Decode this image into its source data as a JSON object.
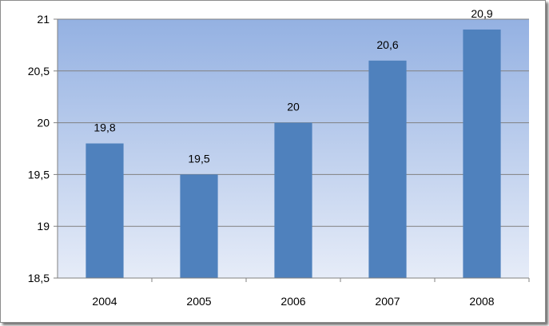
{
  "chart_data": {
    "type": "bar",
    "categories": [
      "2004",
      "2005",
      "2006",
      "2007",
      "2008"
    ],
    "values": [
      19.8,
      19.5,
      20,
      20.6,
      20.9
    ],
    "data_labels": [
      "19,8",
      "19,5",
      "20",
      "20,6",
      "20,9"
    ],
    "title": "",
    "xlabel": "",
    "ylabel": "",
    "ylim": [
      18.5,
      21
    ],
    "y_ticks": [
      18.5,
      19,
      19.5,
      20,
      20.5,
      21
    ],
    "y_tick_labels": [
      "18,5",
      "19",
      "19,5",
      "20",
      "20,5",
      "21"
    ],
    "grid": true,
    "legend": "none",
    "colors": {
      "bar": "#4f81bd",
      "plot_bg_top": "#94b1e2",
      "plot_bg_bottom": "#e6ecf8",
      "gridline": "#808080"
    }
  }
}
